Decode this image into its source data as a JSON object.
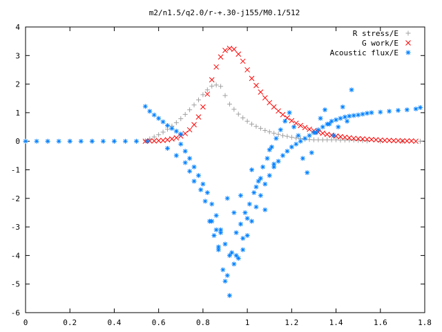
{
  "chart_data": {
    "type": "scatter",
    "title": "m2/n1.5/q2.0/r-+.30-j155/M0.1/512",
    "xlabel": "",
    "ylabel": "",
    "xlim": [
      0,
      1.8
    ],
    "ylim": [
      -6,
      4
    ],
    "x_ticks": [
      "0",
      "0.2",
      "0.4",
      "0.6",
      "0.8",
      "1",
      "1.2",
      "1.4",
      "1.6",
      "1.8"
    ],
    "y_ticks": [
      "-6",
      "-5",
      "-4",
      "-3",
      "-2",
      "-1",
      "0",
      "1",
      "2",
      "3",
      "4"
    ],
    "grid": false,
    "legend_position": "top-right",
    "series": [
      {
        "name": "R stress/E",
        "marker": "+",
        "color": "#a0a0a0",
        "x": [
          0.0,
          0.1,
          0.2,
          0.3,
          0.4,
          0.5,
          0.54,
          0.56,
          0.58,
          0.6,
          0.62,
          0.64,
          0.66,
          0.68,
          0.7,
          0.72,
          0.74,
          0.76,
          0.78,
          0.8,
          0.82,
          0.84,
          0.86,
          0.88,
          0.9,
          0.92,
          0.94,
          0.96,
          0.98,
          1.0,
          1.02,
          1.04,
          1.06,
          1.08,
          1.1,
          1.12,
          1.14,
          1.16,
          1.18,
          1.2,
          1.22,
          1.24,
          1.26,
          1.28,
          1.3,
          1.32,
          1.34,
          1.36,
          1.38,
          1.4,
          1.42,
          1.44,
          1.46,
          1.48,
          1.5,
          1.52,
          1.54,
          1.6,
          1.7,
          1.78
        ],
        "y": [
          0.0,
          0.0,
          0.0,
          0.0,
          0.0,
          0.0,
          0.02,
          0.08,
          0.15,
          0.23,
          0.32,
          0.42,
          0.53,
          0.65,
          0.79,
          0.94,
          1.1,
          1.27,
          1.45,
          1.63,
          1.8,
          1.93,
          1.97,
          1.92,
          1.6,
          1.3,
          1.12,
          0.95,
          0.82,
          0.7,
          0.6,
          0.52,
          0.45,
          0.38,
          0.33,
          0.28,
          0.24,
          0.2,
          0.17,
          0.14,
          0.11,
          0.09,
          0.07,
          0.06,
          0.05,
          0.05,
          0.05,
          0.05,
          0.05,
          0.05,
          0.04,
          0.04,
          0.04,
          0.04,
          0.03,
          0.02,
          0.01,
          0.0,
          0.0,
          0.0
        ]
      },
      {
        "name": "G work/E",
        "marker": "x",
        "color": "#ff0000",
        "x": [
          0.54,
          0.56,
          0.58,
          0.6,
          0.62,
          0.64,
          0.66,
          0.68,
          0.7,
          0.72,
          0.74,
          0.76,
          0.78,
          0.8,
          0.82,
          0.84,
          0.86,
          0.88,
          0.9,
          0.92,
          0.94,
          0.96,
          0.98,
          1.0,
          1.02,
          1.04,
          1.06,
          1.08,
          1.1,
          1.12,
          1.14,
          1.16,
          1.18,
          1.2,
          1.22,
          1.24,
          1.26,
          1.28,
          1.3,
          1.32,
          1.34,
          1.36,
          1.38,
          1.4,
          1.42,
          1.44,
          1.46,
          1.48,
          1.5,
          1.52,
          1.54,
          1.56,
          1.58,
          1.6,
          1.62,
          1.64,
          1.66,
          1.68,
          1.7,
          1.72,
          1.74,
          1.76
        ],
        "y": [
          0.0,
          0.01,
          0.01,
          0.02,
          0.03,
          0.05,
          0.08,
          0.12,
          0.18,
          0.27,
          0.4,
          0.58,
          0.85,
          1.2,
          1.65,
          2.15,
          2.6,
          2.95,
          3.18,
          3.25,
          3.22,
          3.05,
          2.8,
          2.5,
          2.2,
          1.95,
          1.72,
          1.52,
          1.35,
          1.2,
          1.06,
          0.93,
          0.82,
          0.72,
          0.63,
          0.55,
          0.48,
          0.42,
          0.37,
          0.32,
          0.28,
          0.24,
          0.21,
          0.18,
          0.16,
          0.14,
          0.12,
          0.1,
          0.09,
          0.08,
          0.07,
          0.06,
          0.05,
          0.04,
          0.03,
          0.03,
          0.02,
          0.02,
          0.01,
          0.01,
          0.01,
          0.0
        ]
      },
      {
        "name": "Acoustic flux/E",
        "marker": "*",
        "color": "#0080ff",
        "x": [
          0.0,
          0.05,
          0.1,
          0.15,
          0.2,
          0.25,
          0.3,
          0.35,
          0.4,
          0.45,
          0.5,
          0.55,
          0.54,
          0.56,
          0.58,
          0.6,
          0.62,
          0.64,
          0.66,
          0.68,
          0.7,
          0.7,
          0.72,
          0.74,
          0.76,
          0.78,
          0.8,
          0.82,
          0.84,
          0.86,
          0.88,
          0.9,
          0.92,
          0.94,
          0.96,
          0.98,
          1.0,
          1.02,
          1.04,
          1.06,
          1.08,
          1.1,
          1.12,
          1.14,
          1.16,
          1.18,
          1.2,
          1.22,
          1.24,
          1.26,
          1.28,
          1.3,
          1.32,
          1.34,
          1.36,
          1.38,
          1.4,
          1.42,
          1.44,
          1.46,
          1.48,
          1.5,
          1.52,
          1.54,
          1.56,
          1.6,
          1.64,
          1.68,
          1.72,
          1.76,
          1.78,
          0.64,
          0.68,
          0.72,
          0.74,
          0.76,
          0.79,
          0.81,
          0.83,
          0.85,
          0.87,
          0.89,
          0.91,
          0.93,
          0.95,
          0.97,
          0.99,
          1.01,
          1.03,
          1.05,
          1.07,
          1.09,
          1.11,
          1.13,
          1.15,
          1.17,
          1.19,
          1.21,
          1.23,
          1.25,
          1.27,
          1.29,
          1.31,
          1.33,
          1.35,
          1.37,
          1.39,
          1.41,
          1.43,
          1.45,
          1.47,
          0.87,
          0.9,
          0.92,
          0.95,
          0.98,
          1.0,
          1.04,
          1.08,
          1.12,
          0.84,
          0.86,
          0.88,
          0.91,
          0.94,
          0.97,
          1.02,
          1.06,
          1.1
        ],
        "y": [
          0.0,
          0.0,
          0.0,
          0.0,
          0.0,
          0.0,
          0.0,
          0.0,
          0.0,
          0.0,
          0.0,
          0.0,
          1.22,
          1.05,
          0.92,
          0.8,
          0.68,
          0.55,
          0.45,
          0.35,
          0.25,
          -0.1,
          -0.35,
          -0.6,
          -0.9,
          -1.2,
          -1.5,
          -1.8,
          -2.2,
          -2.6,
          -3.1,
          -3.6,
          -4.0,
          -4.3,
          -4.1,
          -3.8,
          -3.3,
          -2.8,
          -2.3,
          -1.9,
          -1.5,
          -1.2,
          -0.9,
          -0.7,
          -0.5,
          -0.35,
          -0.2,
          -0.1,
          0.0,
          0.1,
          0.2,
          0.3,
          0.4,
          0.5,
          0.6,
          0.7,
          0.75,
          0.8,
          0.85,
          0.88,
          0.9,
          0.92,
          0.95,
          0.98,
          1.0,
          1.02,
          1.05,
          1.08,
          1.1,
          1.13,
          1.18,
          -0.25,
          -0.5,
          -0.75,
          -1.05,
          -1.4,
          -1.7,
          -2.1,
          -2.8,
          -3.3,
          -3.8,
          -4.5,
          -4.7,
          -3.9,
          -3.2,
          -2.9,
          -2.5,
          -2.2,
          -1.8,
          -1.4,
          -0.9,
          -0.6,
          -0.2,
          0.1,
          0.4,
          0.7,
          1.0,
          0.5,
          0.2,
          -0.6,
          -1.1,
          -0.4,
          0.3,
          0.8,
          1.1,
          0.6,
          0.2,
          0.5,
          1.2,
          0.7,
          1.8,
          -3.7,
          -4.9,
          -5.4,
          -4.0,
          -3.4,
          -2.7,
          -1.6,
          -2.4,
          -0.8,
          -2.8,
          -3.1,
          -3.2,
          -2.0,
          -2.5,
          -1.9,
          -1.0,
          -1.3,
          -0.3
        ]
      }
    ]
  }
}
